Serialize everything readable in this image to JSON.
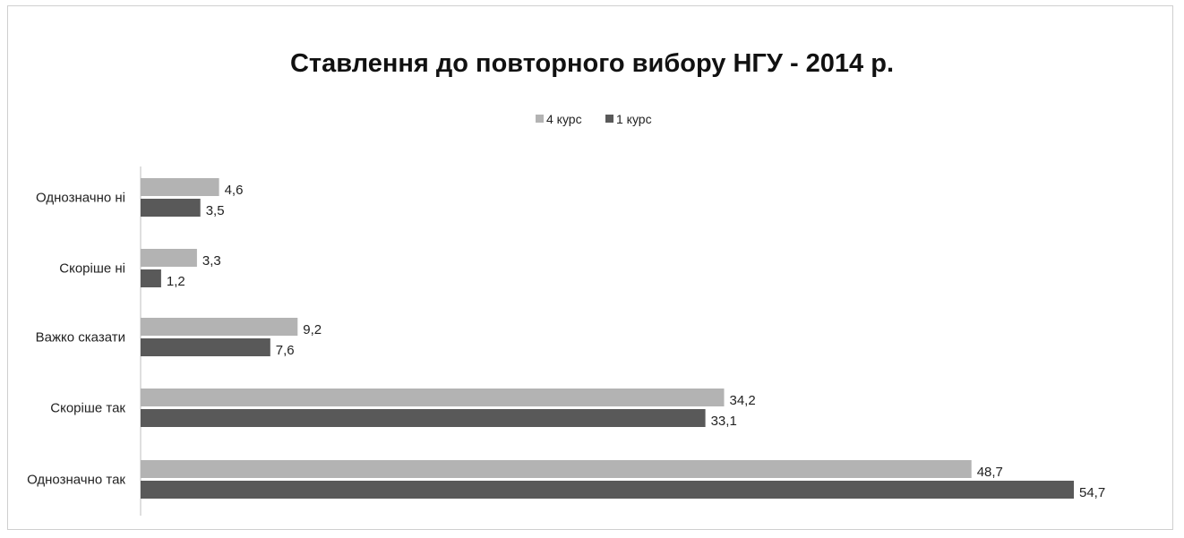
{
  "chart_data": {
    "type": "bar",
    "orientation": "horizontal",
    "title": "Ставлення до повторного вибору НГУ - 2014 р.",
    "categories": [
      "Однозначно ні",
      "Скоріше ні",
      "Важко сказати",
      "Скоріше так",
      "Однозначно так"
    ],
    "series": [
      {
        "name": "4 курс",
        "color": "#b3b3b3",
        "values": [
          4.6,
          3.3,
          9.2,
          34.2,
          48.7
        ],
        "labels": [
          "4,6",
          "3,3",
          "9,2",
          "34,2",
          "48,7"
        ]
      },
      {
        "name": "1 курс",
        "color": "#595959",
        "values": [
          3.5,
          1.2,
          7.6,
          33.1,
          54.7
        ],
        "labels": [
          "3,5",
          "1,2",
          "7,6",
          "33,1",
          "54,7"
        ]
      }
    ],
    "legend_position": "top",
    "grid": false
  }
}
